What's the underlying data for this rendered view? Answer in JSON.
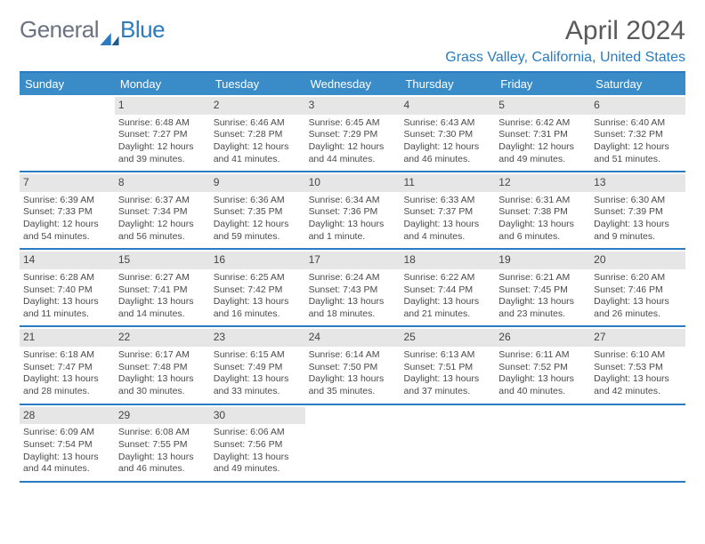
{
  "logo": {
    "text1": "General",
    "text2": "Blue"
  },
  "title": "April 2024",
  "location": "Grass Valley, California, United States",
  "colors": {
    "header_bar": "#3a8cc9",
    "accent_border": "#2a7bbf",
    "daynum_bg": "#e6e6e6",
    "text": "#4a4a4a",
    "logo_gray": "#6b7280",
    "logo_blue": "#2a7bbf"
  },
  "day_names": [
    "Sunday",
    "Monday",
    "Tuesday",
    "Wednesday",
    "Thursday",
    "Friday",
    "Saturday"
  ],
  "weeks": [
    [
      {
        "num": "",
        "sunrise": "",
        "sunset": "",
        "daylight": ""
      },
      {
        "num": "1",
        "sunrise": "Sunrise: 6:48 AM",
        "sunset": "Sunset: 7:27 PM",
        "daylight": "Daylight: 12 hours and 39 minutes."
      },
      {
        "num": "2",
        "sunrise": "Sunrise: 6:46 AM",
        "sunset": "Sunset: 7:28 PM",
        "daylight": "Daylight: 12 hours and 41 minutes."
      },
      {
        "num": "3",
        "sunrise": "Sunrise: 6:45 AM",
        "sunset": "Sunset: 7:29 PM",
        "daylight": "Daylight: 12 hours and 44 minutes."
      },
      {
        "num": "4",
        "sunrise": "Sunrise: 6:43 AM",
        "sunset": "Sunset: 7:30 PM",
        "daylight": "Daylight: 12 hours and 46 minutes."
      },
      {
        "num": "5",
        "sunrise": "Sunrise: 6:42 AM",
        "sunset": "Sunset: 7:31 PM",
        "daylight": "Daylight: 12 hours and 49 minutes."
      },
      {
        "num": "6",
        "sunrise": "Sunrise: 6:40 AM",
        "sunset": "Sunset: 7:32 PM",
        "daylight": "Daylight: 12 hours and 51 minutes."
      }
    ],
    [
      {
        "num": "7",
        "sunrise": "Sunrise: 6:39 AM",
        "sunset": "Sunset: 7:33 PM",
        "daylight": "Daylight: 12 hours and 54 minutes."
      },
      {
        "num": "8",
        "sunrise": "Sunrise: 6:37 AM",
        "sunset": "Sunset: 7:34 PM",
        "daylight": "Daylight: 12 hours and 56 minutes."
      },
      {
        "num": "9",
        "sunrise": "Sunrise: 6:36 AM",
        "sunset": "Sunset: 7:35 PM",
        "daylight": "Daylight: 12 hours and 59 minutes."
      },
      {
        "num": "10",
        "sunrise": "Sunrise: 6:34 AM",
        "sunset": "Sunset: 7:36 PM",
        "daylight": "Daylight: 13 hours and 1 minute."
      },
      {
        "num": "11",
        "sunrise": "Sunrise: 6:33 AM",
        "sunset": "Sunset: 7:37 PM",
        "daylight": "Daylight: 13 hours and 4 minutes."
      },
      {
        "num": "12",
        "sunrise": "Sunrise: 6:31 AM",
        "sunset": "Sunset: 7:38 PM",
        "daylight": "Daylight: 13 hours and 6 minutes."
      },
      {
        "num": "13",
        "sunrise": "Sunrise: 6:30 AM",
        "sunset": "Sunset: 7:39 PM",
        "daylight": "Daylight: 13 hours and 9 minutes."
      }
    ],
    [
      {
        "num": "14",
        "sunrise": "Sunrise: 6:28 AM",
        "sunset": "Sunset: 7:40 PM",
        "daylight": "Daylight: 13 hours and 11 minutes."
      },
      {
        "num": "15",
        "sunrise": "Sunrise: 6:27 AM",
        "sunset": "Sunset: 7:41 PM",
        "daylight": "Daylight: 13 hours and 14 minutes."
      },
      {
        "num": "16",
        "sunrise": "Sunrise: 6:25 AM",
        "sunset": "Sunset: 7:42 PM",
        "daylight": "Daylight: 13 hours and 16 minutes."
      },
      {
        "num": "17",
        "sunrise": "Sunrise: 6:24 AM",
        "sunset": "Sunset: 7:43 PM",
        "daylight": "Daylight: 13 hours and 18 minutes."
      },
      {
        "num": "18",
        "sunrise": "Sunrise: 6:22 AM",
        "sunset": "Sunset: 7:44 PM",
        "daylight": "Daylight: 13 hours and 21 minutes."
      },
      {
        "num": "19",
        "sunrise": "Sunrise: 6:21 AM",
        "sunset": "Sunset: 7:45 PM",
        "daylight": "Daylight: 13 hours and 23 minutes."
      },
      {
        "num": "20",
        "sunrise": "Sunrise: 6:20 AM",
        "sunset": "Sunset: 7:46 PM",
        "daylight": "Daylight: 13 hours and 26 minutes."
      }
    ],
    [
      {
        "num": "21",
        "sunrise": "Sunrise: 6:18 AM",
        "sunset": "Sunset: 7:47 PM",
        "daylight": "Daylight: 13 hours and 28 minutes."
      },
      {
        "num": "22",
        "sunrise": "Sunrise: 6:17 AM",
        "sunset": "Sunset: 7:48 PM",
        "daylight": "Daylight: 13 hours and 30 minutes."
      },
      {
        "num": "23",
        "sunrise": "Sunrise: 6:15 AM",
        "sunset": "Sunset: 7:49 PM",
        "daylight": "Daylight: 13 hours and 33 minutes."
      },
      {
        "num": "24",
        "sunrise": "Sunrise: 6:14 AM",
        "sunset": "Sunset: 7:50 PM",
        "daylight": "Daylight: 13 hours and 35 minutes."
      },
      {
        "num": "25",
        "sunrise": "Sunrise: 6:13 AM",
        "sunset": "Sunset: 7:51 PM",
        "daylight": "Daylight: 13 hours and 37 minutes."
      },
      {
        "num": "26",
        "sunrise": "Sunrise: 6:11 AM",
        "sunset": "Sunset: 7:52 PM",
        "daylight": "Daylight: 13 hours and 40 minutes."
      },
      {
        "num": "27",
        "sunrise": "Sunrise: 6:10 AM",
        "sunset": "Sunset: 7:53 PM",
        "daylight": "Daylight: 13 hours and 42 minutes."
      }
    ],
    [
      {
        "num": "28",
        "sunrise": "Sunrise: 6:09 AM",
        "sunset": "Sunset: 7:54 PM",
        "daylight": "Daylight: 13 hours and 44 minutes."
      },
      {
        "num": "29",
        "sunrise": "Sunrise: 6:08 AM",
        "sunset": "Sunset: 7:55 PM",
        "daylight": "Daylight: 13 hours and 46 minutes."
      },
      {
        "num": "30",
        "sunrise": "Sunrise: 6:06 AM",
        "sunset": "Sunset: 7:56 PM",
        "daylight": "Daylight: 13 hours and 49 minutes."
      },
      {
        "num": "",
        "sunrise": "",
        "sunset": "",
        "daylight": ""
      },
      {
        "num": "",
        "sunrise": "",
        "sunset": "",
        "daylight": ""
      },
      {
        "num": "",
        "sunrise": "",
        "sunset": "",
        "daylight": ""
      },
      {
        "num": "",
        "sunrise": "",
        "sunset": "",
        "daylight": ""
      }
    ]
  ]
}
